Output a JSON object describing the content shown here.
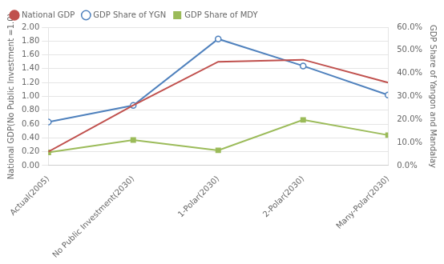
{
  "chart_data": {
    "type": "line",
    "categories": [
      "Actual(2005)",
      "No Public Investment(2030)",
      "1-Polar(2030)",
      "2-Polar(2030)",
      "Many-Polar(2030)"
    ],
    "series": [
      {
        "name": "National GDP",
        "color": "#c0504d",
        "marker": "none",
        "values": [
          0.2,
          0.87,
          1.5,
          1.53,
          1.2
        ]
      },
      {
        "name": "GDP Share of YGN",
        "color": "#4f81bd",
        "marker": "hollow_circle",
        "values": [
          0.63,
          0.87,
          1.83,
          1.44,
          1.02
        ]
      },
      {
        "name": "GDP Share of MDY",
        "color": "#9bbb59",
        "marker": "square",
        "values": [
          0.19,
          0.37,
          0.22,
          0.66,
          0.44
        ]
      }
    ],
    "y_label": "National GDP(No Public Investment =1.0)",
    "y2_label": "GDP Share of Yangon and Mandalay",
    "ylim": [
      0.0,
      2.0
    ],
    "yticks": [
      {
        "value": 0.0,
        "label": "0.00"
      },
      {
        "value": 0.2,
        "label": "0.20"
      },
      {
        "value": 0.4,
        "label": "0.40"
      },
      {
        "value": 0.6,
        "label": "0.60"
      },
      {
        "value": 0.8,
        "label": "0.80"
      },
      {
        "value": 1.0,
        "label": "1.00"
      },
      {
        "value": 1.2,
        "label": "1.20"
      },
      {
        "value": 1.4,
        "label": "1.40"
      },
      {
        "value": 1.6,
        "label": "1.60"
      },
      {
        "value": 1.8,
        "label": "1.80"
      },
      {
        "value": 2.0,
        "label": "2.00"
      }
    ],
    "y2lim": [
      0,
      60
    ],
    "y2ticks": [
      {
        "value": 0,
        "label": "0.0%"
      },
      {
        "value": 10,
        "label": "10.0%"
      },
      {
        "value": 20,
        "label": "20.0%"
      },
      {
        "value": 30,
        "label": "30.0%"
      },
      {
        "value": 40,
        "label": "40.0%"
      },
      {
        "value": 50,
        "label": "50.0%"
      },
      {
        "value": 60,
        "label": "60.0%"
      }
    ],
    "grid": "y",
    "legend": "upper left"
  }
}
